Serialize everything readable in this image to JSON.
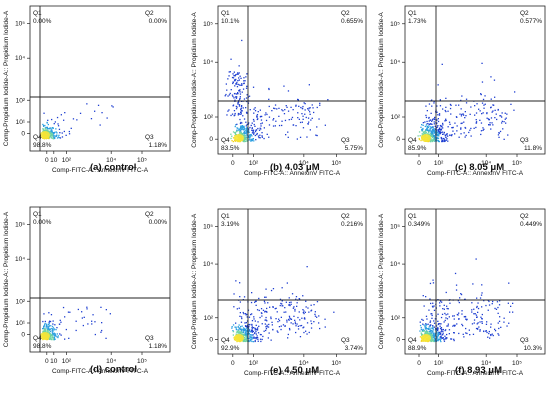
{
  "figure": {
    "axis_labels": {
      "x": "Comp-FITC-A:: AnnexinV FITC-A",
      "y": "Comp-Propidium Iodide-A:: Propidium Iodide-A"
    },
    "tick_labels": {
      "x": [
        "0",
        "10²",
        "10⁴",
        "10⁵"
      ],
      "y": [
        "0",
        "10²",
        "10⁴",
        "10⁵"
      ],
      "x_control": [
        "0",
        "10",
        "10²",
        "10⁴",
        "10⁵"
      ],
      "y_control": [
        "0",
        "10¹",
        "10²",
        "10⁴",
        "10⁵"
      ]
    },
    "quadrant_names": [
      "Q1",
      "Q2",
      "Q3",
      "Q4"
    ]
  },
  "chart_data": [
    {
      "type": "scatter",
      "caption": "(a)  control",
      "quadrants": {
        "Q1": "0.00%",
        "Q2": "0.00%",
        "Q3": "1.18%",
        "Q4": "98.8%"
      }
    },
    {
      "type": "scatter",
      "caption": "(b) 4.03 μM",
      "quadrants": {
        "Q1": "10.1%",
        "Q2": "0.655%",
        "Q3": "5.75%",
        "Q4": "83.5%"
      }
    },
    {
      "type": "scatter",
      "caption": "(c) 8.05 μM",
      "quadrants": {
        "Q1": "1.73%",
        "Q2": "0.577%",
        "Q3": "11.8%",
        "Q4": "85.9%"
      }
    },
    {
      "type": "scatter",
      "caption": "(d)  control",
      "quadrants": {
        "Q1": "0.00%",
        "Q2": "0.00%",
        "Q3": "1.18%",
        "Q4": "98.8%"
      }
    },
    {
      "type": "scatter",
      "caption": "(e) 4.50 μM",
      "quadrants": {
        "Q1": "3.19%",
        "Q2": "0.216%",
        "Q3": "3.74%",
        "Q4": "92.9%"
      }
    },
    {
      "type": "scatter",
      "caption": "(f) 8.93 μM",
      "quadrants": {
        "Q1": "0.349%",
        "Q2": "0.449%",
        "Q3": "10.3%",
        "Q4": "88.9%"
      }
    }
  ]
}
